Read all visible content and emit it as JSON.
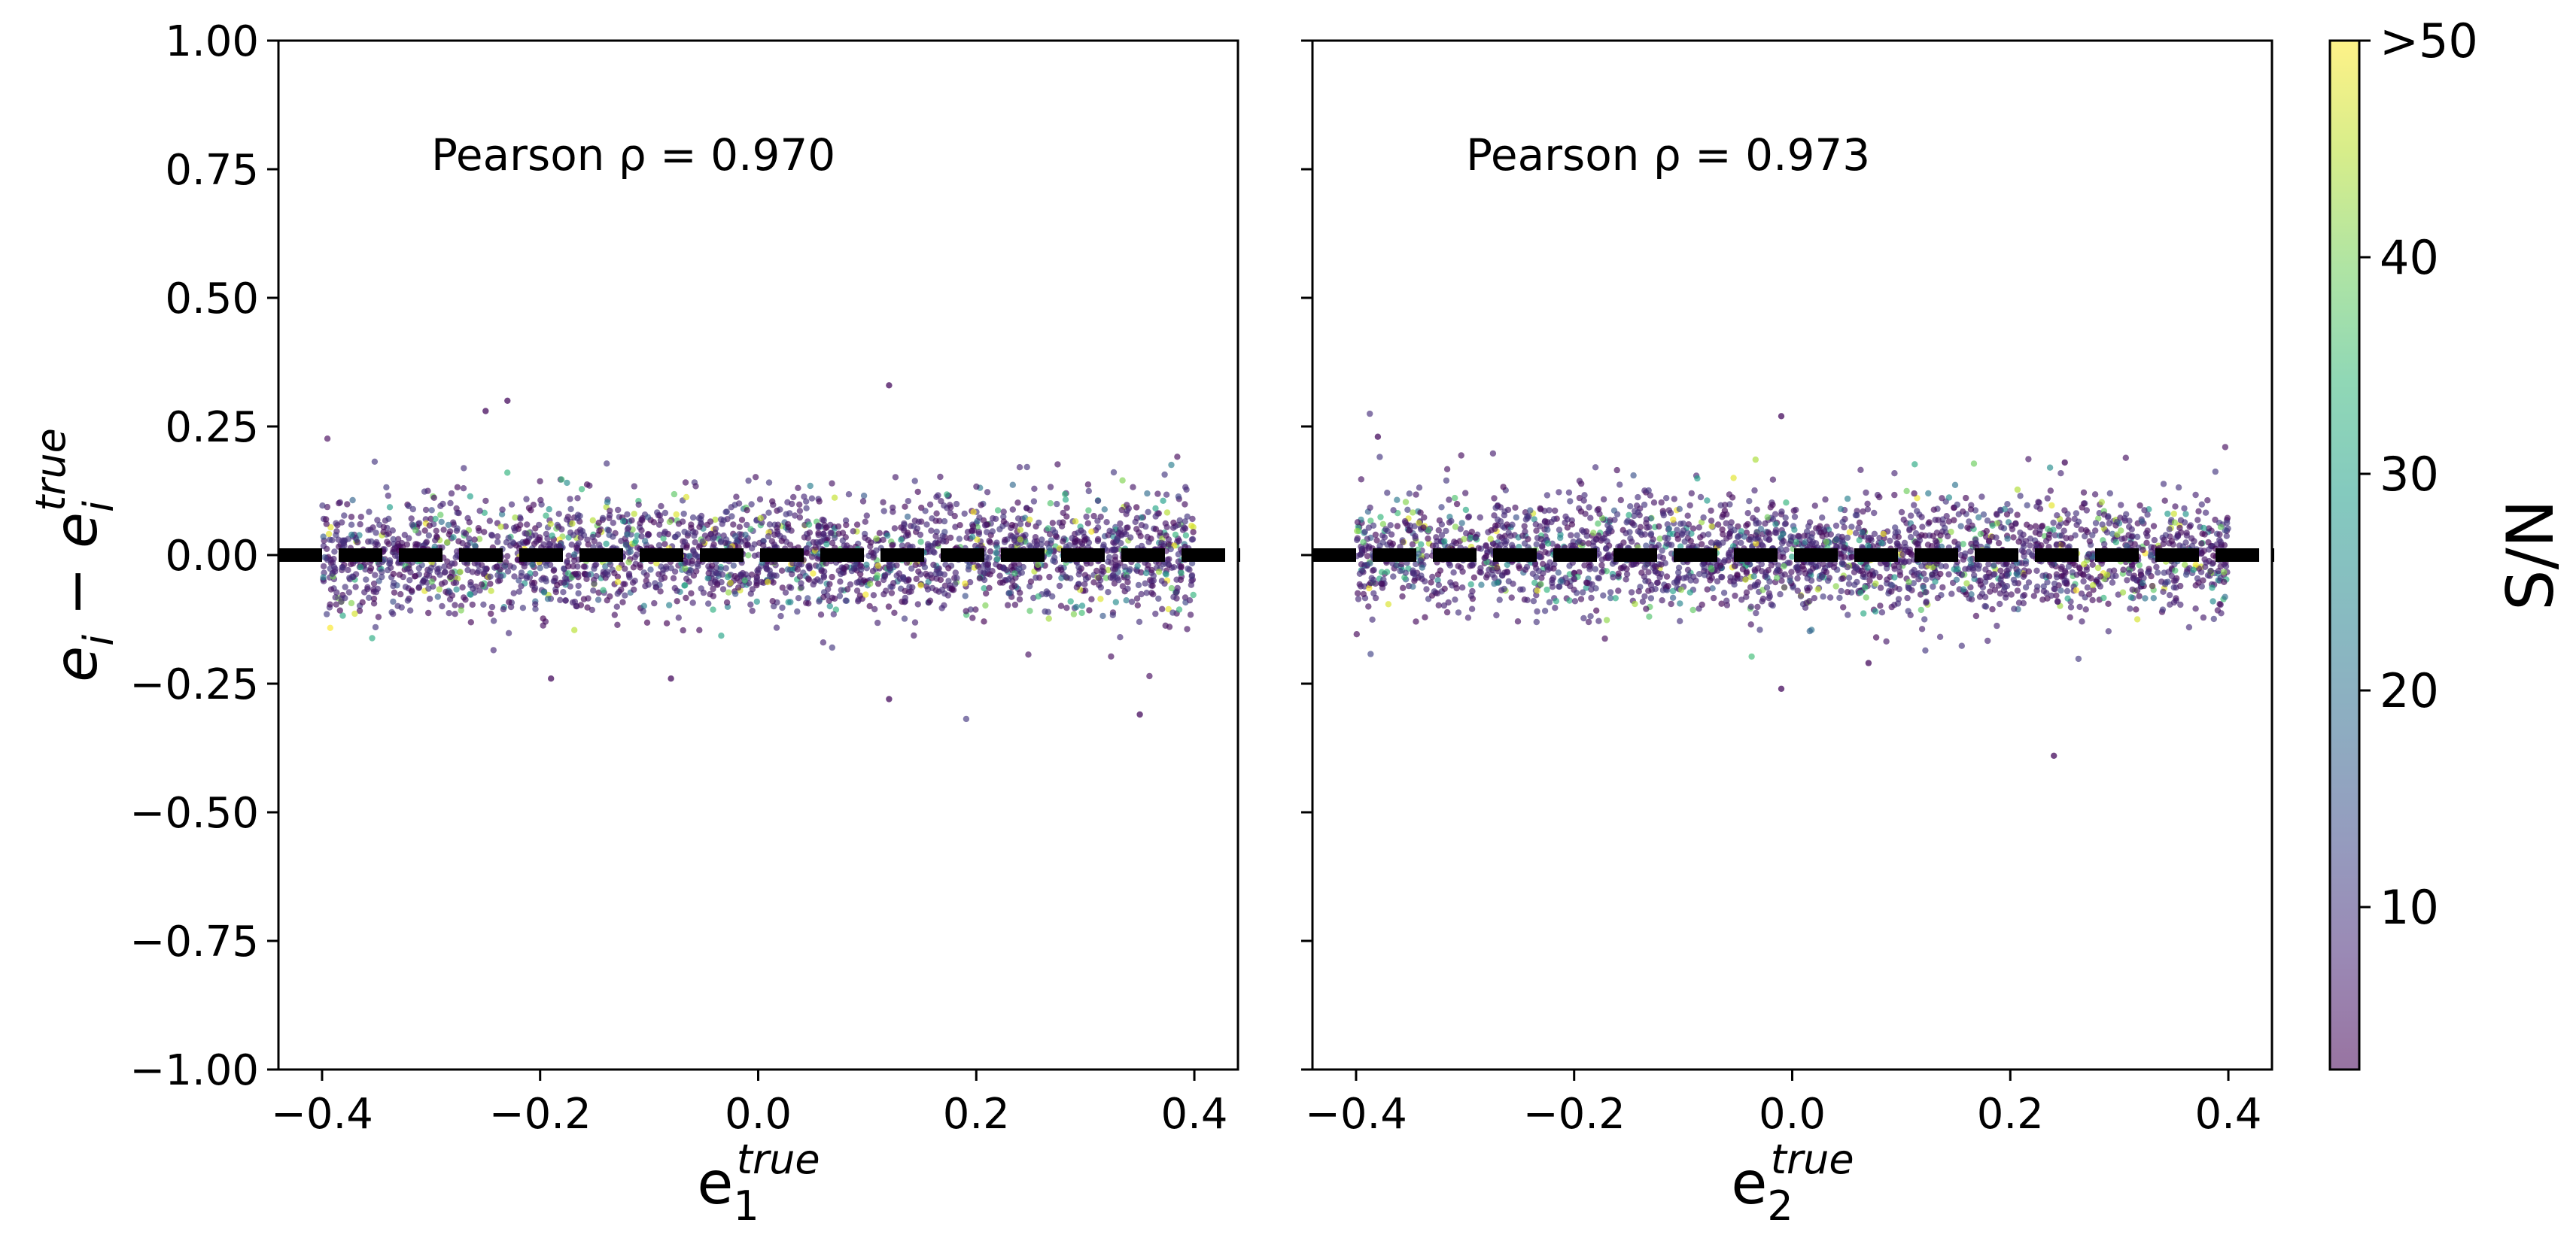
{
  "chart_data": [
    {
      "type": "scatter",
      "panel": "left",
      "xlabel": "e1 true",
      "xlabel_parts": {
        "base": "e",
        "sub": "1",
        "sup": "true"
      },
      "ylabel": "e_i − e_i^true",
      "ylabel_parts": {
        "base1": "e",
        "sub1": "i",
        "minus": " − ",
        "base2": "e",
        "sub2": "i",
        "sup2": "true"
      },
      "xlim": [
        -0.44,
        0.44
      ],
      "ylim": [
        -1.0,
        1.0
      ],
      "xticks": [
        "−0.4",
        "−0.2",
        "0.0",
        "0.2",
        "0.4"
      ],
      "xtick_values": [
        -0.4,
        -0.2,
        0.0,
        0.2,
        0.4
      ],
      "yticks": [
        "1.00",
        "0.75",
        "0.50",
        "0.25",
        "0.00",
        "−0.25",
        "−0.50",
        "−0.75",
        "−1.00"
      ],
      "ytick_values": [
        1.0,
        0.75,
        0.5,
        0.25,
        0.0,
        -0.25,
        -0.5,
        -0.75,
        -1.0
      ],
      "annotation": "Pearson ρ = 0.970",
      "reference_line": {
        "y": 0.0,
        "style": "dashed",
        "color": "#000000"
      },
      "points": {
        "count": 2600,
        "x_range": [
          -0.4,
          0.4
        ],
        "y_center": 0.0,
        "y_spread_sd": 0.055
      },
      "outliers": [
        {
          "x": 0.12,
          "y": 0.33
        },
        {
          "x": -0.23,
          "y": 0.3
        },
        {
          "x": -0.25,
          "y": 0.28
        },
        {
          "x": 0.35,
          "y": -0.31
        },
        {
          "x": 0.12,
          "y": -0.28
        },
        {
          "x": -0.08,
          "y": -0.24
        },
        {
          "x": -0.19,
          "y": -0.24
        }
      ],
      "grid": false,
      "color_by": "S/N"
    },
    {
      "type": "scatter",
      "panel": "right",
      "xlabel": "e2 true",
      "xlabel_parts": {
        "base": "e",
        "sub": "2",
        "sup": "true"
      },
      "xlim": [
        -0.44,
        0.44
      ],
      "ylim": [
        -1.0,
        1.0
      ],
      "xticks": [
        "−0.4",
        "−0.2",
        "0.0",
        "0.2",
        "0.4"
      ],
      "xtick_values": [
        -0.4,
        -0.2,
        0.0,
        0.2,
        0.4
      ],
      "annotation": "Pearson ρ = 0.973",
      "reference_line": {
        "y": 0.0,
        "style": "dashed",
        "color": "#000000"
      },
      "points": {
        "count": 2600,
        "x_range": [
          -0.4,
          0.4
        ],
        "y_center": 0.0,
        "y_spread_sd": 0.055
      },
      "outliers": [
        {
          "x": 0.24,
          "y": -0.39
        },
        {
          "x": -0.01,
          "y": 0.27
        },
        {
          "x": -0.01,
          "y": -0.26
        },
        {
          "x": 0.25,
          "y": 0.18
        },
        {
          "x": -0.38,
          "y": 0.23
        },
        {
          "x": 0.07,
          "y": -0.21
        }
      ],
      "grid": false,
      "color_by": "S/N"
    }
  ],
  "colorbar": {
    "label": "S/N",
    "min": 2.5,
    "max": 50,
    "ticks": [
      "10",
      "20",
      "30",
      "40",
      ">50"
    ],
    "tick_values": [
      10,
      20,
      30,
      40,
      50
    ],
    "colormap": "viridis",
    "colors": [
      "#440154",
      "#482878",
      "#3e4989",
      "#31688e",
      "#26828e",
      "#1f9e89",
      "#35b779",
      "#6ece58",
      "#b5de2b",
      "#fde725"
    ],
    "alpha": 0.55
  }
}
